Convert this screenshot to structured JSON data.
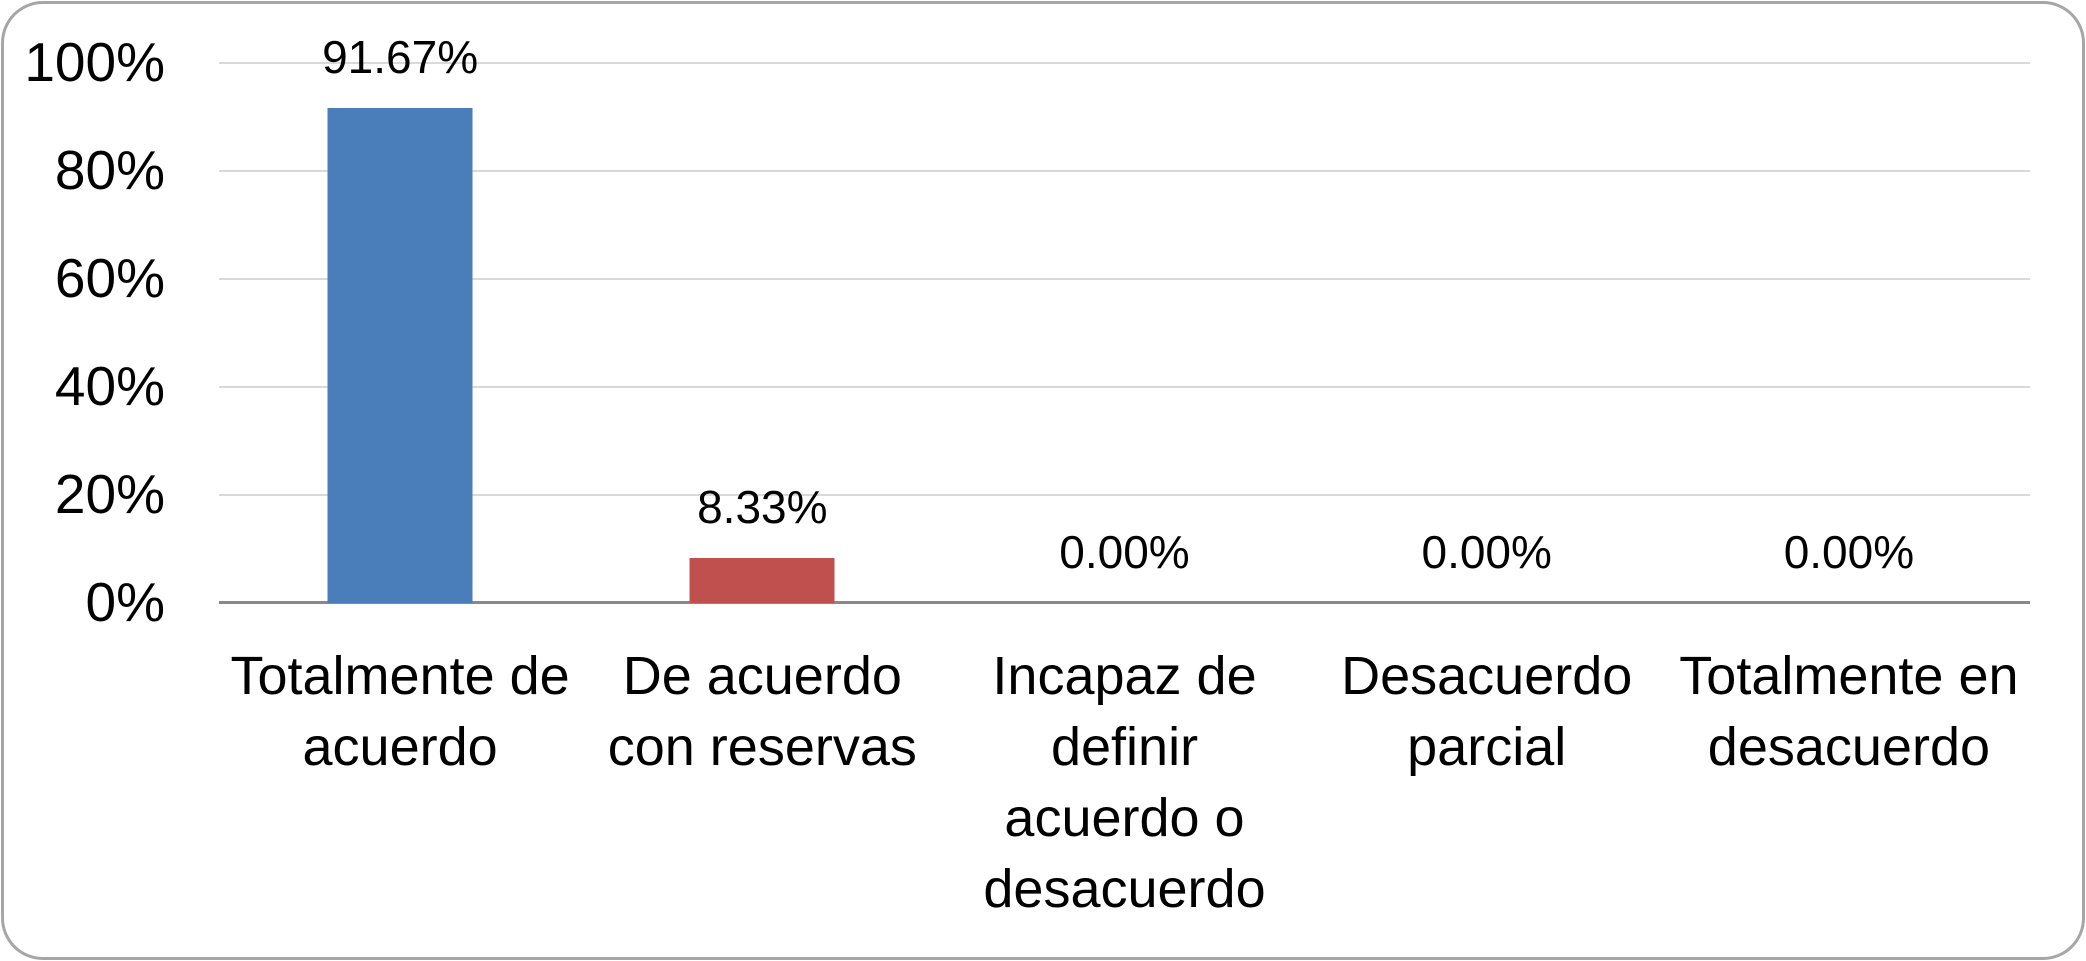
{
  "chart_data": {
    "type": "bar",
    "title": "",
    "xlabel": "",
    "ylabel": "",
    "legend": null,
    "categories": [
      "Totalmente de acuerdo",
      "De acuerdo con reservas",
      "Incapaz de definir acuerdo o desacuerdo",
      "Desacuerdo parcial",
      "Totalmente en desacuerdo"
    ],
    "categories_display": [
      "Totalmente de\nacuerdo",
      "De acuerdo\ncon reservas",
      "Incapaz de\ndefinir\nacuerdo o\ndesacuerdo",
      "Desacuerdo\nparcial",
      "Totalmente en\ndesacuerdo"
    ],
    "values": [
      91.67,
      8.33,
      0,
      0,
      0
    ],
    "value_labels": [
      "91.67%",
      "8.33%",
      "0.00%",
      "0.00%",
      "0.00%"
    ],
    "y_axis": {
      "min": 0,
      "max": 100,
      "tick_interval": 20,
      "ticks": [
        "100%",
        "80%",
        "60%",
        "40%",
        "20%",
        "0%"
      ]
    },
    "bar_colors": [
      "#4A7EBB",
      "#C0504D",
      null,
      null,
      null
    ],
    "styles": {
      "gridline_color": "#D9D9D9",
      "axis_line_color": "#898989",
      "border_color": "#A6A6A6",
      "background": "#FFFFFF",
      "text_color": "#000000"
    },
    "grid": true,
    "legend_position": "none"
  }
}
